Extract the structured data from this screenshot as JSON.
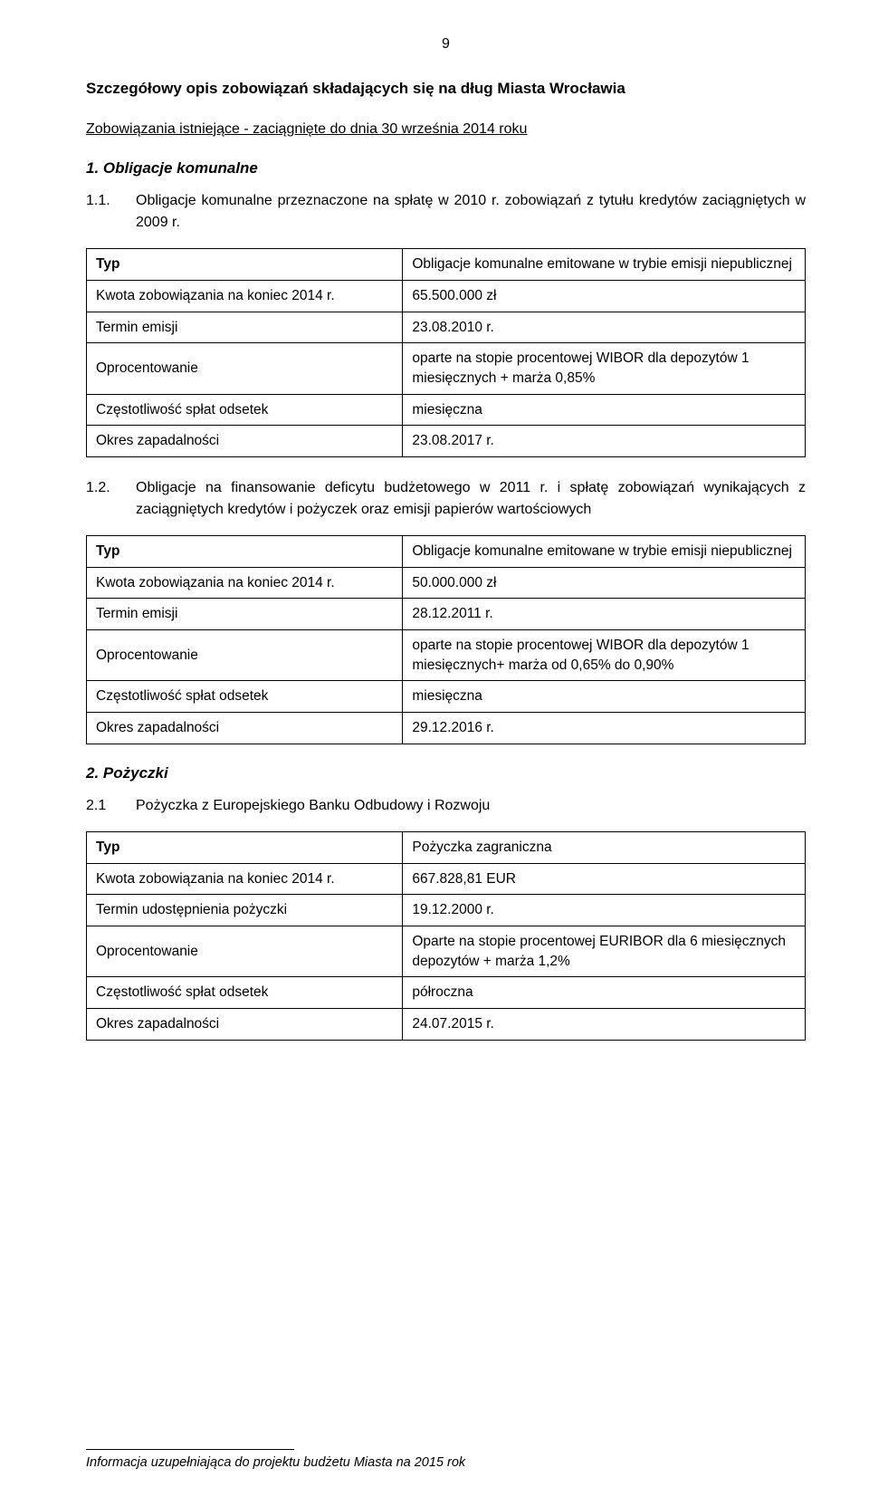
{
  "page_number": "9",
  "main_title": "Szczegółowy opis zobowiązań składających się na dług Miasta Wrocławia",
  "subtitle": "Zobowiązania istniejące - zaciągnięte do dnia 30 września 2014 roku",
  "section1_heading": "1. Obligacje komunalne",
  "item_1_1_num": "1.1.",
  "item_1_1_text": "Obligacje komunalne przeznaczone na spłatę w 2010 r. zobowiązań z tytułu kredytów zaciągniętych w 2009 r.",
  "table1": {
    "rows": [
      {
        "label": "Typ",
        "value": "Obligacje komunalne emitowane w trybie emisji niepublicznej",
        "head": true
      },
      {
        "label": "Kwota zobowiązania na koniec 2014 r.",
        "value": "65.500.000 zł"
      },
      {
        "label": "Termin emisji",
        "value": "23.08.2010 r."
      },
      {
        "label": "Oprocentowanie",
        "value": "oparte na stopie procentowej WIBOR dla depozytów 1 miesięcznych + marża 0,85%"
      },
      {
        "label": "Częstotliwość spłat odsetek",
        "value": "miesięczna"
      },
      {
        "label": "Okres zapadalności",
        "value": "23.08.2017 r."
      }
    ]
  },
  "item_1_2_num": "1.2.",
  "item_1_2_text": "Obligacje na finansowanie deficytu budżetowego w 2011 r. i spłatę zobowiązań wynikających z zaciągniętych kredytów i pożyczek oraz emisji papierów wartościowych",
  "table2": {
    "rows": [
      {
        "label": "Typ",
        "value": "Obligacje komunalne emitowane w trybie emisji niepublicznej",
        "head": true
      },
      {
        "label": "Kwota zobowiązania na koniec 2014 r.",
        "value": "50.000.000 zł"
      },
      {
        "label": "Termin emisji",
        "value": "28.12.2011 r."
      },
      {
        "label": "Oprocentowanie",
        "value": "oparte na stopie procentowej WIBOR dla depozytów 1 miesięcznych+ marża od 0,65% do 0,90%"
      },
      {
        "label": "Częstotliwość spłat odsetek",
        "value": "miesięczna"
      },
      {
        "label": "Okres zapadalności",
        "value": "29.12.2016 r."
      }
    ]
  },
  "section2_heading": "2. Pożyczki",
  "item_2_1_num": "2.1",
  "item_2_1_text": "Pożyczka z Europejskiego Banku Odbudowy i Rozwoju",
  "table3": {
    "rows": [
      {
        "label": "Typ",
        "value": "Pożyczka zagraniczna",
        "head": true
      },
      {
        "label": "Kwota zobowiązania na koniec 2014 r.",
        "value": "667.828,81 EUR"
      },
      {
        "label": "Termin udostępnienia pożyczki",
        "value": "19.12.2000 r."
      },
      {
        "label": "Oprocentowanie",
        "value": "Oparte na stopie procentowej EURIBOR dla 6 miesięcznych depozytów + marża 1,2%"
      },
      {
        "label": "Częstotliwość spłat odsetek",
        "value": "półroczna"
      },
      {
        "label": "Okres zapadalności",
        "value": "24.07.2015 r."
      }
    ]
  },
  "footer_text": "Informacja uzupełniająca do projektu budżetu Miasta na 2015 rok"
}
